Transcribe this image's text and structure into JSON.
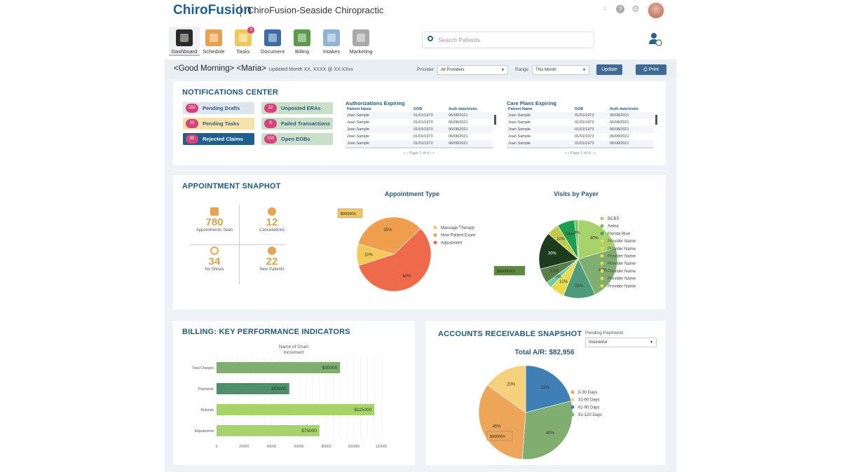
{
  "header": {
    "logo": "ChiroFusion",
    "practice": "ChiroFusion-Seaside Chiropractic"
  },
  "nav": [
    {
      "label": "Dashboard",
      "color": "#2a2a2a"
    },
    {
      "label": "Schedule",
      "color": "#e8a04a"
    },
    {
      "label": "Tasks",
      "color": "#f0c75a",
      "badge": "3"
    },
    {
      "label": "Document",
      "color": "#3b6ea5"
    },
    {
      "label": "Billing",
      "color": "#5a9a4a"
    },
    {
      "label": "Intakes",
      "color": "#8fb3d6"
    },
    {
      "label": "Marketing",
      "color": "#a8a8a8"
    }
  ],
  "search": {
    "placeholder": "Search Patients"
  },
  "toolbar": {
    "greeting": "<Good Morning> <Maria>",
    "updated": "Updated Month XX, XXXX @ XX:XXxx",
    "provider_label": "Provider",
    "provider_value": "All Providers",
    "range_label": "Range",
    "range_value": "This Month",
    "update": "Update",
    "print": "Print"
  },
  "notifications": {
    "title": "NOTIFICATIONS CENTER",
    "pills": [
      {
        "count": "282",
        "label": "Pending Drafts",
        "bg": "#dfe5ec",
        "fg": "#2f5a80"
      },
      {
        "count": "32",
        "label": "Unposted ERAs",
        "bg": "#c9dfc8",
        "fg": "#2f5a80"
      },
      {
        "count": "20",
        "label": "Pending Tasks",
        "bg": "#f5e2a8",
        "fg": "#2f5a80"
      },
      {
        "count": "8",
        "label": "Failed Transactions",
        "bg": "#c9dfc8",
        "fg": "#2f5a80"
      },
      {
        "count": "85",
        "label": "Rejected Claims",
        "bg": "#1d5f8f",
        "fg": "#ffffff"
      },
      {
        "count": "150",
        "label": "Open EOBs",
        "bg": "#c9dfc8",
        "fg": "#2f5a80"
      }
    ],
    "tables": [
      {
        "title": "Authorizations Expiring",
        "headers": [
          "Patient Name",
          "DOB",
          "Auth date/visits"
        ],
        "rows": [
          [
            "Joan Sample",
            "01/01/1973",
            "06/08/2021"
          ],
          [
            "Joan Sample",
            "01/01/1973",
            "06/08/2021"
          ],
          [
            "Joan Sample",
            "01/01/1973",
            "06/08/2021"
          ],
          [
            "Joan Sample",
            "01/01/1973",
            "06/08/2021"
          ],
          [
            "Joan Sample",
            "01/01/1973",
            "06/08/2021"
          ]
        ],
        "pager": "«  ‹  Page  1  of 4  ›  »"
      },
      {
        "title": "Care Plans Expiring",
        "headers": [
          "Patient Name",
          "DOB",
          "Auth date/visits"
        ],
        "rows": [
          [
            "Joan Sample",
            "01/01/1973",
            "06/08/2021"
          ],
          [
            "Joan Sample",
            "01/01/1973",
            "06/08/2021"
          ],
          [
            "Joan Sample",
            "01/01/1973",
            "06/08/2021"
          ],
          [
            "Joan Sample",
            "01/01/1973",
            "06/08/2021"
          ],
          [
            "Joan Sample",
            "01/01/1973",
            "06/08/2021"
          ]
        ],
        "pager": "«  ‹  Page  1  of 4  ›  »"
      }
    ]
  },
  "appointments": {
    "title": "APPOINTMENT SNAPHOT",
    "stats": [
      {
        "value": "780",
        "label": "Appointments Seen",
        "icon": "calendar-icon"
      },
      {
        "value": "12",
        "label": "Cancellations",
        "icon": "x-circle-icon"
      },
      {
        "value": "34",
        "label": "No Shows",
        "icon": "no-entry-icon"
      },
      {
        "value": "22",
        "label": "New Patients",
        "icon": "check-circle-icon"
      }
    ]
  },
  "chart_data": [
    {
      "type": "pie",
      "title": "Appointment Type",
      "tag": "$00000X",
      "tag_color": "#f0c75a",
      "slices": [
        {
          "name": "Massage Therapy",
          "label": "10%",
          "value": 10,
          "color": "#f4c95a"
        },
        {
          "name": "New Patient Exam",
          "label": "35%",
          "value": 35,
          "color": "#ee9e4c"
        },
        {
          "name": "Adjustment",
          "label": "60%",
          "value": 60,
          "color": "#ee6a4a"
        }
      ]
    },
    {
      "type": "pie",
      "title": "Visits by Payer",
      "tag": "$00000XX",
      "tag_color": "#5e8a3e",
      "slices": [
        {
          "name": "BCBS",
          "label": "40%",
          "value": 40,
          "color": "#a8d26b"
        },
        {
          "name": "Aetna",
          "label": "44%",
          "value": 44,
          "color": "#7fae70"
        },
        {
          "name": "Florida Blue",
          "label": "26%",
          "value": 26,
          "color": "#4f9a7a"
        },
        {
          "name": "Provider Name",
          "label": "12%",
          "value": 12,
          "color": "#e8db4a"
        },
        {
          "name": "Provider Name",
          "label": "5%",
          "value": 5,
          "color": "#70c8a8"
        },
        {
          "name": "Provider Name",
          "label": "12%",
          "value": 12,
          "color": "#5b7f4a"
        },
        {
          "name": "Provider Name",
          "label": "30%",
          "value": 30,
          "color": "#1b3d1e"
        },
        {
          "name": "Provider Name",
          "label": "10%",
          "value": 10,
          "color": "#c3c94a"
        },
        {
          "name": "Provider Name",
          "label": "14%",
          "value": 14,
          "color": "#1e9d50"
        },
        {
          "name": "Provider Name",
          "label": "3%",
          "value": 3,
          "color": "#78c070"
        }
      ]
    },
    {
      "type": "bar",
      "orientation": "horizontal",
      "title": "Name of Chart",
      "subtitle": "Increment",
      "categories": [
        "Total Charges",
        "Payments",
        "Refunds",
        "Adjustments"
      ],
      "values": [
        90000,
        53000,
        115000,
        75000
      ],
      "labels": [
        "$90000",
        "$53000",
        "$115000",
        "$75000"
      ],
      "colors": [
        "#7fae70",
        "#4f8f6a",
        "#a8d26b",
        "#a8d26b"
      ],
      "xlim": [
        0,
        120000
      ],
      "xticks": [
        0,
        20000,
        40000,
        60000,
        80000,
        100000,
        120000
      ],
      "grid": true
    },
    {
      "type": "pie",
      "title": "Total A/R: $82,956",
      "tag": "$00000X",
      "tag_color": "#eda55a",
      "slices": [
        {
          "name": "61-90 Days",
          "label": "28%",
          "value": 28,
          "color": "#3f7fb5"
        },
        {
          "name": "91-120 Days",
          "label": "40%",
          "value": 40,
          "color": "#7fae70"
        },
        {
          "name": "0-30 Days",
          "label": "45%",
          "value": 45,
          "color": "#eda55a"
        },
        {
          "name": "31-60 Days",
          "label": "20%",
          "value": 20,
          "color": "#f6d07a"
        }
      ]
    }
  ],
  "billing": {
    "title": "BILLING: KEY PERFORMANCE INDICATORS"
  },
  "ar": {
    "title": "ACCOUNTS RECEIVABLE SNAPSHOT",
    "filter_label": "Pending Payments",
    "filter_value": "Insurance",
    "legend_order": [
      "0-30 Days",
      "31-60 Days",
      "61-90 Days",
      "91-120 Days"
    ]
  }
}
